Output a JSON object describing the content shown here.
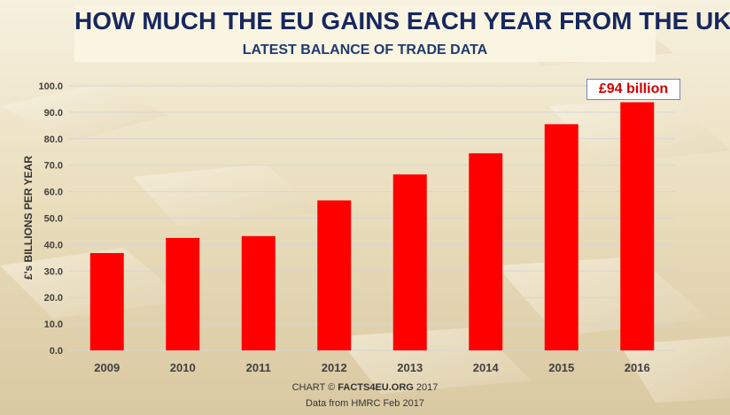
{
  "header": {
    "title": "HOW MUCH THE EU GAINS EACH YEAR FROM THE UK",
    "subtitle": "LATEST BALANCE OF TRADE DATA"
  },
  "footer": {
    "credit_prefix": "CHART © ",
    "credit_brand": "FACTS4EU.ORG",
    "credit_suffix": " 2017",
    "source": "Data from HMRC Feb 2017"
  },
  "callout": {
    "text": "£94 billion"
  },
  "colors": {
    "bar": "#ff0000",
    "title": "#17285f",
    "callout_text": "#d40000"
  },
  "background": {
    "icon": "gold-bars-image"
  },
  "chart_data": {
    "type": "bar",
    "title": "HOW MUCH THE EU GAINS EACH YEAR FROM THE UK",
    "subtitle": "LATEST BALANCE OF TRADE DATA",
    "xlabel": "",
    "ylabel": "£'s BILLIONS PER YEAR",
    "ylim": [
      0,
      100
    ],
    "ytick_step": 10,
    "ytick_labels": [
      "0.0",
      "10.0",
      "20.0",
      "30.0",
      "40.0",
      "50.0",
      "60.0",
      "70.0",
      "80.0",
      "90.0",
      "100.0"
    ],
    "grid": true,
    "categories": [
      "2009",
      "2010",
      "2011",
      "2012",
      "2013",
      "2014",
      "2015",
      "2016"
    ],
    "values": [
      36.8,
      42.5,
      43.2,
      56.7,
      66.5,
      74.5,
      85.5,
      93.8
    ],
    "annotations": [
      {
        "category": "2016",
        "text": "£94 billion"
      }
    ]
  }
}
